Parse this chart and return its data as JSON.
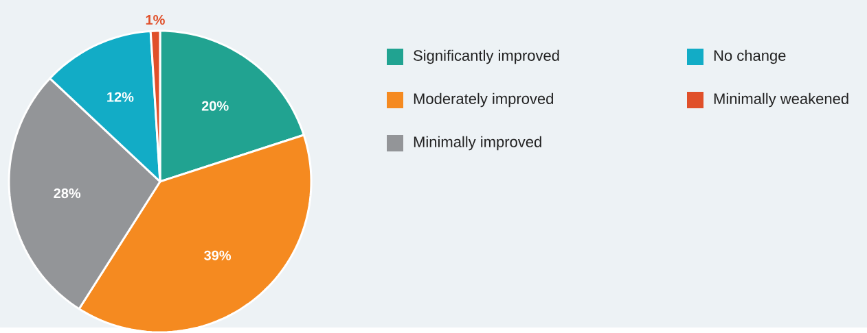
{
  "chart_data": {
    "type": "pie",
    "categories": [
      "Significantly improved",
      "Moderately improved",
      "Minimally improved",
      "No change",
      "Minimally weakened"
    ],
    "values": [
      20,
      39,
      28,
      12,
      1
    ],
    "colors": [
      "#21a391",
      "#f58a20",
      "#939598",
      "#12acc6",
      "#e0502a"
    ],
    "value_labels": [
      "20%",
      "39%",
      "28%",
      "12%",
      "1%"
    ],
    "legend": "right"
  }
}
